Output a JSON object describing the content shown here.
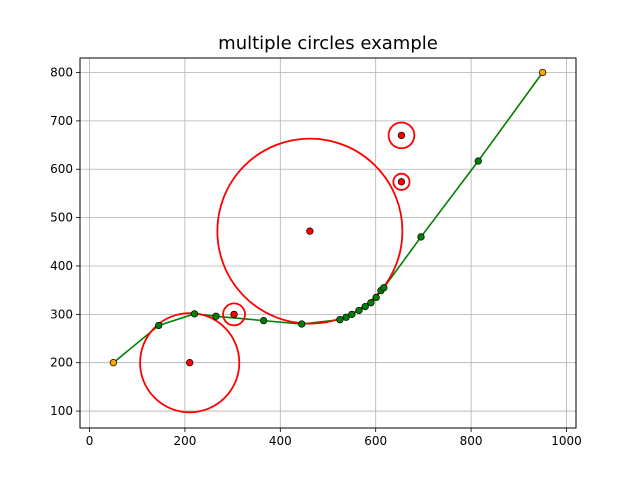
{
  "chart_data": {
    "type": "scatter",
    "title": "multiple circles example",
    "xlabel": "",
    "ylabel": "",
    "xlim": [
      -20,
      1020
    ],
    "ylim": [
      65,
      830
    ],
    "xticks": [
      0,
      200,
      400,
      600,
      800,
      1000
    ],
    "yticks": [
      100,
      200,
      300,
      400,
      500,
      600,
      700,
      800
    ],
    "grid": true,
    "colors": {
      "path_line": "#008000",
      "path_point": "#008000",
      "endpoint": "#ffa500",
      "center_point": "#ff0000",
      "circle": "#ff0000",
      "grid": "#b0b0b0"
    },
    "path": {
      "x": [
        50,
        145,
        220,
        265,
        365,
        445,
        525,
        538,
        550,
        565,
        578,
        590,
        601,
        611,
        617,
        695,
        815,
        950
      ],
      "y": [
        200,
        277,
        301,
        296,
        287,
        280,
        289,
        294,
        300,
        308,
        316,
        324,
        335,
        349,
        355,
        460,
        617,
        800
      ]
    },
    "endpoints": {
      "x": [
        50,
        950
      ],
      "y": [
        200,
        800
      ]
    },
    "circles": [
      {
        "cx": 210,
        "cy": 200,
        "r": 104
      },
      {
        "cx": 462,
        "cy": 472,
        "r": 194
      },
      {
        "cx": 303,
        "cy": 300,
        "r": 23
      },
      {
        "cx": 654,
        "cy": 670,
        "r": 27
      },
      {
        "cx": 654,
        "cy": 574,
        "r": 17
      }
    ]
  }
}
